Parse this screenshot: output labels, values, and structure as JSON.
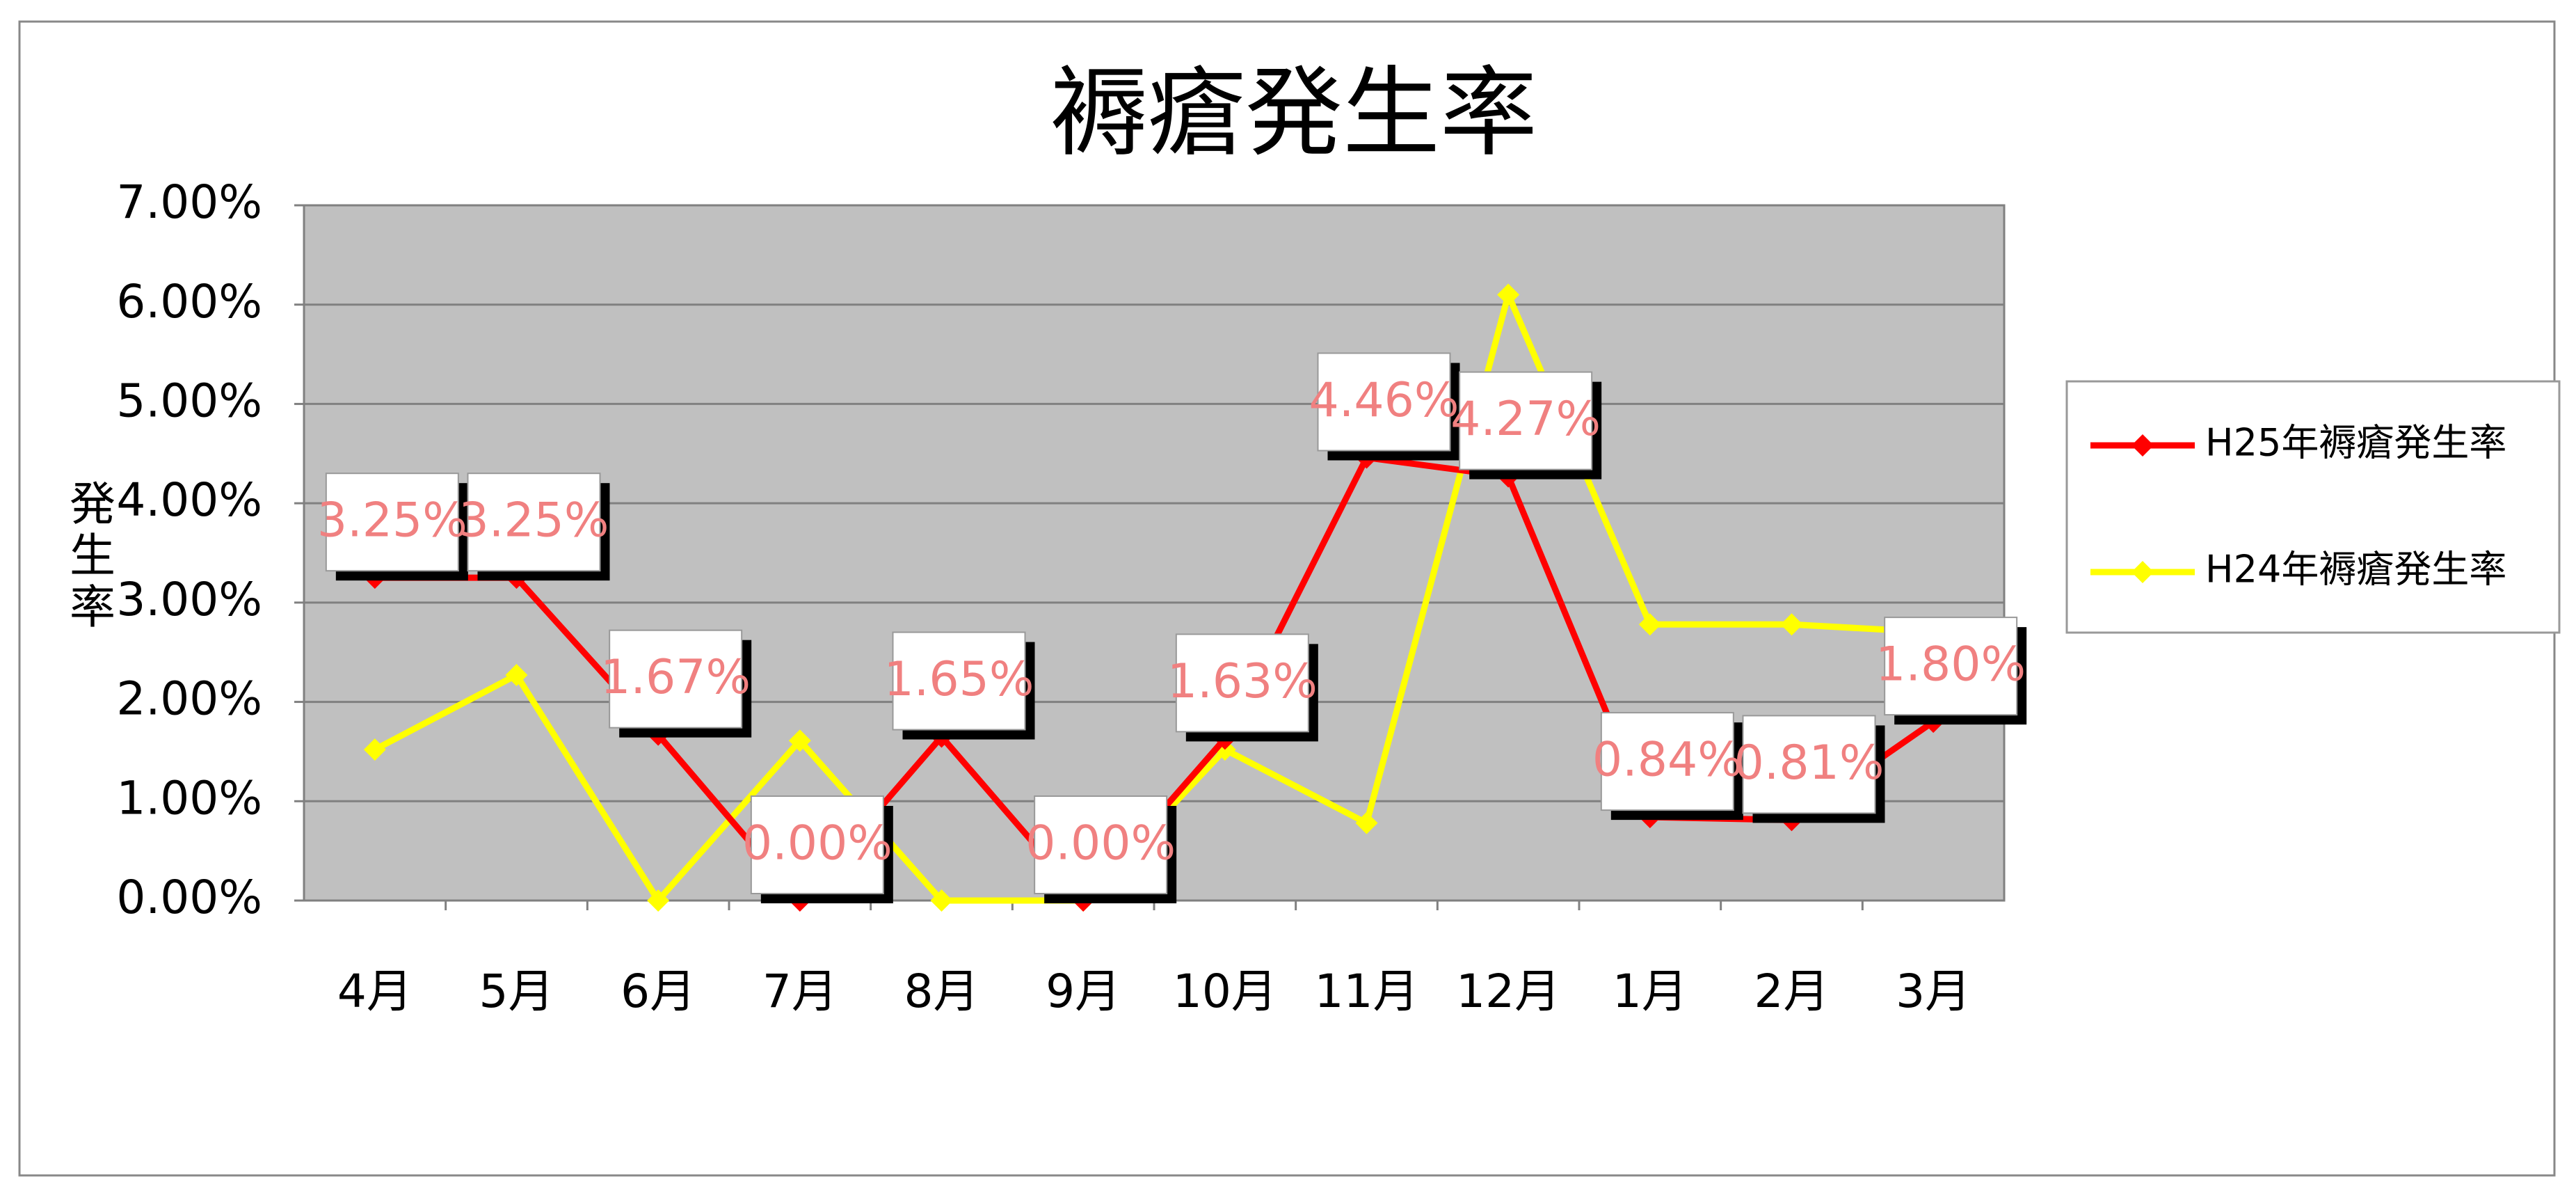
{
  "chart_data": {
    "type": "line",
    "title": "褥瘡発生率",
    "y_label": "発生率",
    "categories": [
      "4月",
      "5月",
      "6月",
      "7月",
      "8月",
      "9月",
      "10月",
      "11月",
      "12月",
      "1月",
      "2月",
      "3月"
    ],
    "series": [
      {
        "name": "H25年褥瘡発生率",
        "color": "#ff0000",
        "values": [
          3.25,
          3.25,
          1.67,
          0.0,
          1.65,
          0.0,
          1.63,
          4.46,
          4.27,
          0.84,
          0.81,
          1.8
        ],
        "value_labels": [
          "3.25%",
          "3.25%",
          "1.67%",
          "0.00%",
          "1.65%",
          "0.00%",
          "1.63%",
          "4.46%",
          "4.27%",
          "0.84%",
          "0.81%",
          "1.80%"
        ]
      },
      {
        "name": "H24年褥瘡発生率",
        "color": "#ffff00",
        "values": [
          1.52,
          2.27,
          0.0,
          1.61,
          0.0,
          0.0,
          1.52,
          0.78,
          6.1,
          2.78,
          2.78,
          2.7
        ]
      }
    ],
    "ylim": [
      0,
      7
    ],
    "yticks": [
      {
        "value": 0,
        "label": "0.00%"
      },
      {
        "value": 1,
        "label": "1.00%"
      },
      {
        "value": 2,
        "label": "2.00%"
      },
      {
        "value": 3,
        "label": "3.00%"
      },
      {
        "value": 4,
        "label": "4.00%"
      },
      {
        "value": 5,
        "label": "5.00%"
      },
      {
        "value": 6,
        "label": "6.00%"
      },
      {
        "value": 7,
        "label": "7.00%"
      }
    ],
    "grid": true
  }
}
